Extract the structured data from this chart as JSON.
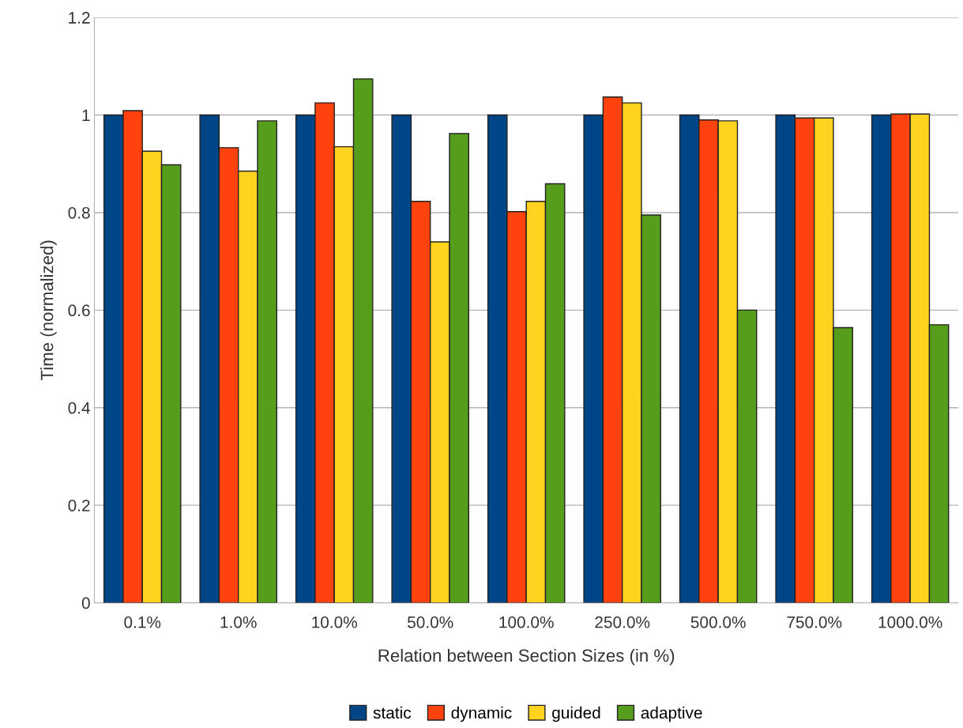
{
  "chart_data": {
    "type": "bar",
    "xlabel": "Relation between Section Sizes (in %)",
    "ylabel": "Time (normalized)",
    "categories": [
      "0.1%",
      "1.0%",
      "10.0%",
      "50.0%",
      "100.0%",
      "250.0%",
      "500.0%",
      "750.0%",
      "1000.0%"
    ],
    "series": [
      {
        "name": "static",
        "color": "#004586",
        "values": [
          1,
          1,
          1,
          1,
          1,
          1,
          1,
          1,
          1
        ]
      },
      {
        "name": "dynamic",
        "color": "#ff420e",
        "values": [
          1.009,
          0.933,
          1.025,
          0.823,
          0.802,
          1.037,
          0.99,
          0.994,
          1.002
        ]
      },
      {
        "name": "guided",
        "color": "#ffd320",
        "values": [
          0.926,
          0.885,
          0.935,
          0.74,
          0.823,
          1.025,
          0.988,
          0.994,
          1.002
        ]
      },
      {
        "name": "adaptive",
        "color": "#579d1c",
        "values": [
          0.898,
          0.988,
          1.074,
          0.962,
          0.859,
          0.795,
          0.6,
          0.564,
          0.57
        ]
      }
    ],
    "ylim": [
      0,
      1.2
    ],
    "yticks": [
      0,
      {
        "value": 0.2,
        "label": "0.2"
      },
      {
        "value": 0.4,
        "label": "0.4"
      },
      {
        "value": 0.6,
        "label": "0.6"
      },
      {
        "value": 0.8,
        "label": "0.8"
      },
      1,
      {
        "value": 1.2,
        "label": "1.2"
      }
    ],
    "grid": "y",
    "legend": "bottom"
  }
}
